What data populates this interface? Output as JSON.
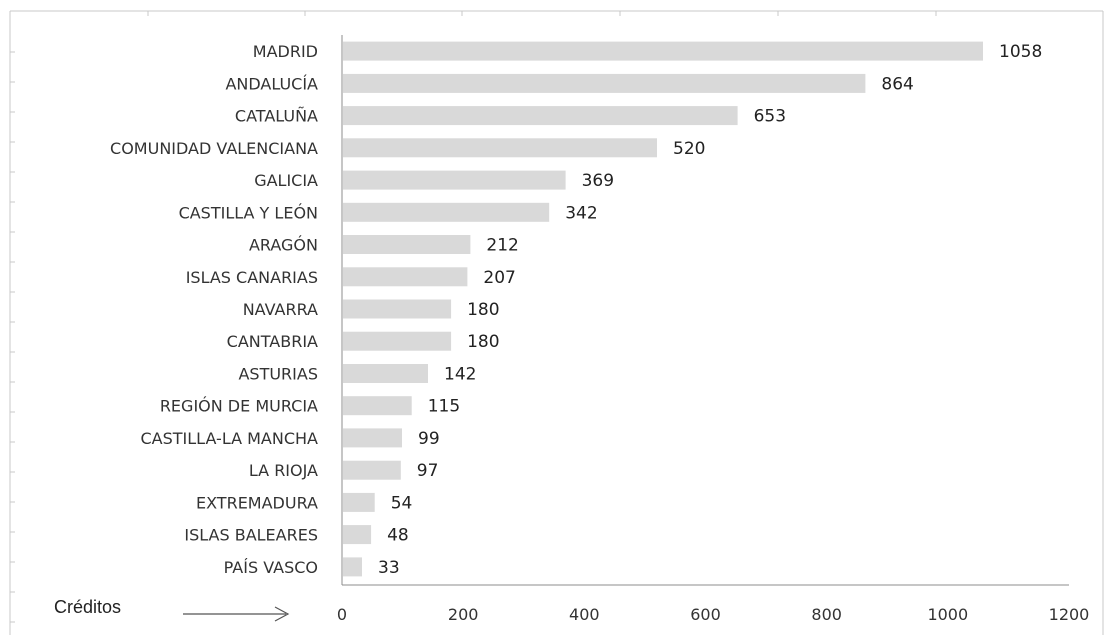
{
  "chart_data": {
    "type": "bar",
    "orientation": "horizontal",
    "categories": [
      "MADRID",
      "ANDALUCÍA",
      "CATALUÑA",
      "COMUNIDAD VALENCIANA",
      "GALICIA",
      "CASTILLA Y LEÓN",
      "ARAGÓN",
      "ISLAS CANARIAS",
      "NAVARRA",
      "CANTABRIA",
      "ASTURIAS",
      "REGIÓN DE MURCIA",
      "CASTILLA-LA MANCHA",
      "LA RIOJA",
      "EXTREMADURA",
      "ISLAS BALEARES",
      "PAÍS VASCO"
    ],
    "values": [
      1058,
      864,
      653,
      520,
      369,
      342,
      212,
      207,
      180,
      180,
      142,
      115,
      99,
      97,
      54,
      48,
      33
    ],
    "xlabel": "Créditos",
    "xlim": [
      0,
      1200
    ],
    "xticks": [
      0,
      200,
      400,
      600,
      800,
      1000,
      1200
    ],
    "grid": false,
    "data_labels": true,
    "bar_color": "#d9d9d9"
  }
}
